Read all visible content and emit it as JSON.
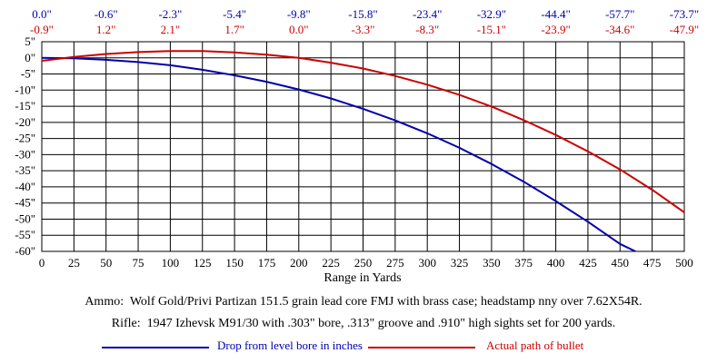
{
  "chart_data": {
    "type": "line",
    "xlabel": "Range in Yards",
    "ylabel": "",
    "x": [
      0,
      25,
      50,
      75,
      100,
      125,
      150,
      175,
      200,
      225,
      250,
      275,
      300,
      325,
      350,
      375,
      400,
      425,
      450,
      475,
      500
    ],
    "xticks": [
      "0",
      "25",
      "50",
      "75",
      "100",
      "125",
      "150",
      "175",
      "200",
      "225",
      "250",
      "275",
      "300",
      "325",
      "350",
      "375",
      "400",
      "425",
      "450",
      "475",
      "500"
    ],
    "xlim": [
      0,
      500
    ],
    "yticks": [
      "5\"",
      "0\"",
      "-5\"",
      "-10\"",
      "-15\"",
      "-20\"",
      "-25\"",
      "-30\"",
      "-35\"",
      "-40\"",
      "-45\"",
      "-50\"",
      "-55\"",
      "-60\""
    ],
    "ylim": [
      -60,
      5
    ],
    "grid": true,
    "top_row_x": [
      0,
      50,
      100,
      150,
      200,
      250,
      300,
      350,
      400,
      450,
      500
    ],
    "top_labels_drop": [
      "0.0\"",
      "-0.6\"",
      "-2.3\"",
      "-5.4\"",
      "-9.8\"",
      "-15.8\"",
      "-23.4\"",
      "-32.9\"",
      "-44.4\"",
      "-57.7\"",
      "-73.7\""
    ],
    "top_labels_path": [
      "-0.9\"",
      "1.2\"",
      "2.1\"",
      "1.7\"",
      "0.0\"",
      "-3.3\"",
      "-8.3\"",
      "-15.1\"",
      "-23.9\"",
      "-34.6\"",
      "-47.9\""
    ],
    "series": [
      {
        "name": "Drop from level bore in inches",
        "color": "#0000aa",
        "x": [
          0,
          25,
          50,
          75,
          100,
          125,
          150,
          175,
          200,
          225,
          250,
          275,
          300,
          325,
          350,
          375,
          400,
          425,
          450,
          462
        ],
        "values": [
          0.0,
          -0.15,
          -0.6,
          -1.3,
          -2.3,
          -3.7,
          -5.4,
          -7.4,
          -9.8,
          -12.6,
          -15.8,
          -19.4,
          -23.4,
          -27.9,
          -32.9,
          -38.4,
          -44.4,
          -50.8,
          -57.7,
          -60.0
        ]
      },
      {
        "name": "Actual path of bullet",
        "color": "#cc0000",
        "x": [
          0,
          25,
          50,
          75,
          100,
          125,
          150,
          175,
          200,
          225,
          250,
          275,
          300,
          325,
          350,
          375,
          400,
          425,
          450,
          475,
          500
        ],
        "values": [
          -0.9,
          0.3,
          1.2,
          1.8,
          2.1,
          2.1,
          1.7,
          1.0,
          0.0,
          -1.5,
          -3.3,
          -5.6,
          -8.3,
          -11.5,
          -15.1,
          -19.3,
          -23.9,
          -29.0,
          -34.6,
          -40.9,
          -47.9
        ]
      }
    ]
  },
  "captions": {
    "ammo": "Ammo:  Wolf Gold/Privi Partizan 151.5 grain lead core FMJ with brass case; headstamp nny over 7.62X54R.",
    "rifle": "Rifle:  1947 Izhevsk M91/30 with .303\" bore, .313\" groove and .910\" high sights set for 200 yards."
  },
  "legend": {
    "drop_label": "Drop from level bore in inches",
    "path_label": "Actual path of bullet",
    "drop_color": "#0000aa",
    "path_color": "#cc0000"
  }
}
